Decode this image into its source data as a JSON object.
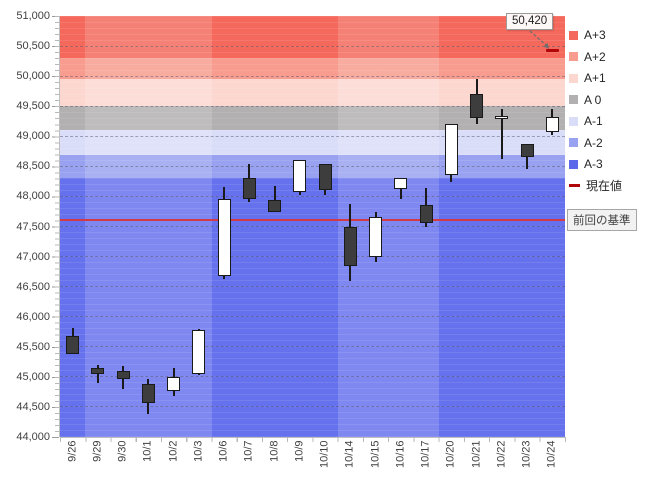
{
  "chart_data": {
    "type": "candlestick",
    "title": "",
    "y_axis": {
      "min": 44000,
      "max": 51000,
      "step": 500,
      "tick_labels": [
        "51,000",
        "50,500",
        "50,000",
        "49,500",
        "49,000",
        "48,500",
        "48,000",
        "47,500",
        "47,000",
        "46,500",
        "46,000",
        "45,500",
        "45,000",
        "44,500",
        "44,000"
      ]
    },
    "x_categories": [
      "9/26",
      "9/29",
      "9/30",
      "10/1",
      "10/2",
      "10/3",
      "10/6",
      "10/7",
      "10/8",
      "10/9",
      "10/10",
      "10/14",
      "10/15",
      "10/16",
      "10/17",
      "10/20",
      "10/21",
      "10/22",
      "10/23",
      "10/24"
    ],
    "series": [
      {
        "date": "9/26",
        "open": 45680,
        "high": 45820,
        "low": 45380,
        "close": 45380,
        "direction": "down"
      },
      {
        "date": "9/29",
        "open": 45150,
        "high": 45200,
        "low": 44900,
        "close": 45050,
        "direction": "down"
      },
      {
        "date": "9/30",
        "open": 45100,
        "high": 45180,
        "low": 44800,
        "close": 44970,
        "direction": "down"
      },
      {
        "date": "10/1",
        "open": 44880,
        "high": 44960,
        "low": 44380,
        "close": 44570,
        "direction": "down"
      },
      {
        "date": "10/2",
        "open": 44770,
        "high": 45150,
        "low": 44680,
        "close": 44990,
        "direction": "up"
      },
      {
        "date": "10/3",
        "open": 45040,
        "high": 45790,
        "low": 45030,
        "close": 45780,
        "direction": "up"
      },
      {
        "date": "10/6",
        "open": 46670,
        "high": 48150,
        "low": 46630,
        "close": 47950,
        "direction": "up"
      },
      {
        "date": "10/7",
        "open": 48300,
        "high": 48540,
        "low": 47900,
        "close": 47960,
        "direction": "down"
      },
      {
        "date": "10/8",
        "open": 47940,
        "high": 48180,
        "low": 47740,
        "close": 47740,
        "direction": "down"
      },
      {
        "date": "10/9",
        "open": 48070,
        "high": 48610,
        "low": 48030,
        "close": 48610,
        "direction": "up"
      },
      {
        "date": "10/10",
        "open": 48540,
        "high": 48540,
        "low": 48030,
        "close": 48100,
        "direction": "down"
      },
      {
        "date": "10/14",
        "open": 47490,
        "high": 47880,
        "low": 46600,
        "close": 46850,
        "direction": "down"
      },
      {
        "date": "10/15",
        "open": 46990,
        "high": 47740,
        "low": 46910,
        "close": 47660,
        "direction": "up"
      },
      {
        "date": "10/16",
        "open": 48130,
        "high": 48300,
        "low": 47960,
        "close": 48300,
        "direction": "up"
      },
      {
        "date": "10/17",
        "open": 47850,
        "high": 48140,
        "low": 47490,
        "close": 47550,
        "direction": "down"
      },
      {
        "date": "10/20",
        "open": 48350,
        "high": 49210,
        "low": 48240,
        "close": 49210,
        "direction": "up"
      },
      {
        "date": "10/21",
        "open": 49710,
        "high": 49960,
        "low": 49210,
        "close": 49300,
        "direction": "down"
      },
      {
        "date": "10/22",
        "open": 49300,
        "high": 49460,
        "low": 48630,
        "close": 49340,
        "direction": "up"
      },
      {
        "date": "10/23",
        "open": 48880,
        "high": 48880,
        "low": 48460,
        "close": 48660,
        "direction": "down"
      },
      {
        "date": "10/24",
        "open": 49070,
        "high": 49460,
        "low": 49020,
        "close": 49320,
        "direction": "up"
      }
    ],
    "zones": [
      {
        "label": "A+3",
        "from": 50300,
        "to": 51000,
        "color": "#f4695c"
      },
      {
        "label": "A+2",
        "from": 49960,
        "to": 50300,
        "color": "#f79c8e"
      },
      {
        "label": "A+1",
        "from": 49500,
        "to": 49960,
        "color": "#fcd7d0"
      },
      {
        "label": "A 0",
        "from": 49110,
        "to": 49500,
        "color": "#b2b0b0"
      },
      {
        "label": "A-1",
        "from": 48690,
        "to": 49110,
        "color": "#d9ddf8"
      },
      {
        "label": "A-2",
        "from": 48300,
        "to": 48690,
        "color": "#99a2f0"
      },
      {
        "label": "A-3",
        "from": 44000,
        "to": 48300,
        "color": "#6672ed"
      }
    ],
    "week_shading": {
      "light_column_ranges": [
        [
          1,
          5
        ],
        [
          11,
          14
        ]
      ]
    },
    "baseline": {
      "label": "前回の基準",
      "value": 47600,
      "color": "#d23b46"
    },
    "current_value": {
      "label": "現在値",
      "value": 50420,
      "display": "50,420",
      "color": "#b00609"
    },
    "candle_colors": {
      "up_fill": "#ffffff",
      "down_fill": "#3d3d3d",
      "outline": "#1a1a1a"
    },
    "legend_position": "right",
    "grid": "horizontal dashed every 500"
  },
  "legend_items": [
    {
      "label": "A+3",
      "color": "#f4695c",
      "swatch": "square"
    },
    {
      "label": "A+2",
      "color": "#f79c8e",
      "swatch": "square"
    },
    {
      "label": "A+1",
      "color": "#fcd7d0",
      "swatch": "square"
    },
    {
      "label": "A 0",
      "color": "#b2b0b0",
      "swatch": "square"
    },
    {
      "label": "A-1",
      "color": "#d9ddf8",
      "swatch": "square"
    },
    {
      "label": "A-2",
      "color": "#99a2f0",
      "swatch": "square"
    },
    {
      "label": "A-3",
      "color": "#5b68ea",
      "swatch": "square"
    },
    {
      "label": "現在値",
      "color": "#b00609",
      "swatch": "dash"
    }
  ]
}
